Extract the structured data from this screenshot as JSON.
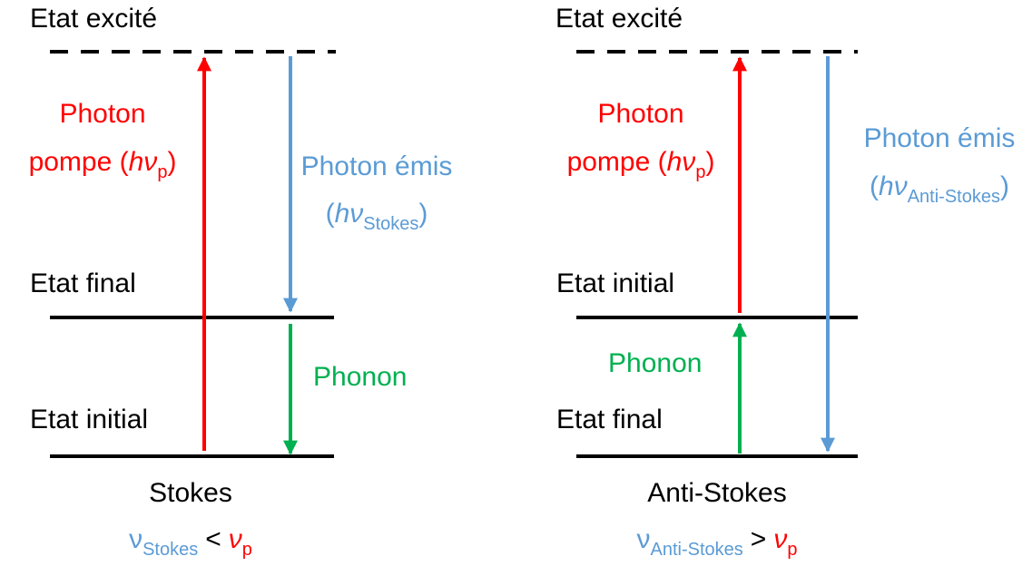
{
  "panels": [
    {
      "levels": {
        "excited": "Etat excité",
        "middle": "Etat final",
        "bottom": "Etat initial"
      },
      "pump": {
        "line1": "Photon",
        "line2": "pompe (",
        "symbol": "hν",
        "sub": "p",
        "close": ")"
      },
      "emitted": {
        "line1": "Photon émis",
        "open": "(",
        "symbol": "hν",
        "sub": "Stokes",
        "close": ")"
      },
      "phonon": "Phonon",
      "caption": "Stokes",
      "relation": {
        "symbol": "ν",
        "sub": "Stokes",
        "op": "<",
        "symbol2": "ν",
        "sub2": "p"
      }
    },
    {
      "levels": {
        "excited": "Etat excité",
        "middle": "Etat initial",
        "bottom": "Etat final"
      },
      "pump": {
        "line1": "Photon",
        "line2": "pompe (",
        "symbol": "hν",
        "sub": "p",
        "close": ")"
      },
      "emitted": {
        "line1": "Photon émis",
        "open": "(",
        "symbol": "hν",
        "sub": "Anti-Stokes",
        "close": ")"
      },
      "phonon": "Phonon",
      "caption": "Anti-Stokes",
      "relation": {
        "symbol": "ν",
        "sub": "Anti-Stokes",
        "op": ">",
        "symbol2": "ν",
        "sub2": "p"
      }
    }
  ]
}
